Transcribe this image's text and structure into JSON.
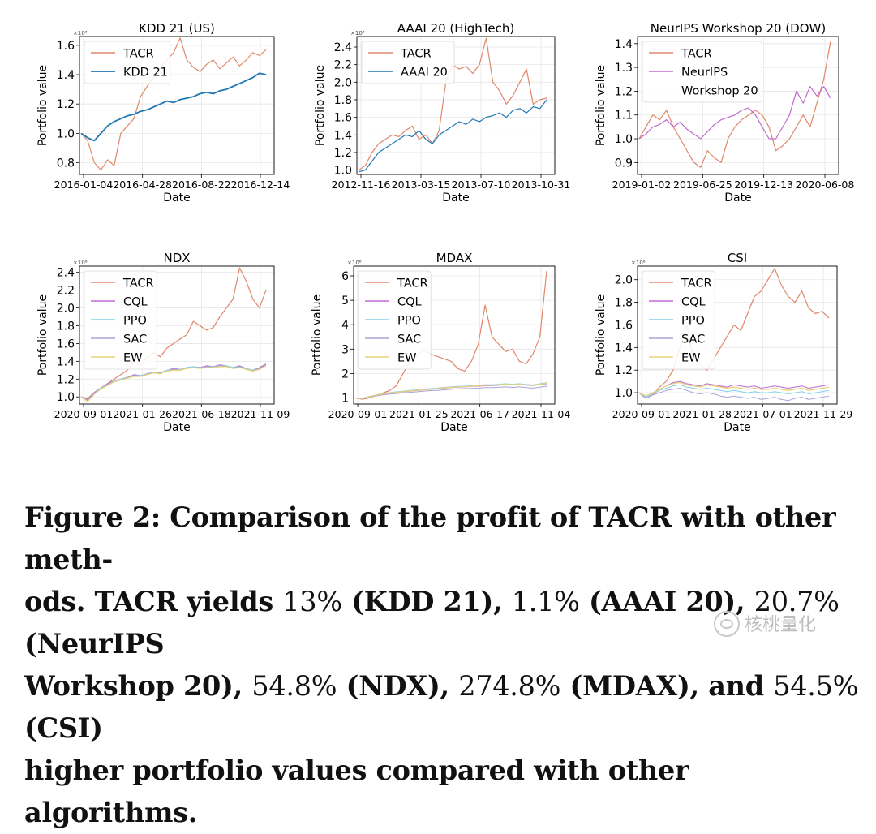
{
  "chart_data": [
    {
      "type": "line",
      "title": "KDD 21 (US)",
      "xlabel": "Date",
      "ylabel": "Portfolio value",
      "scale_label": "×10⁶",
      "x_ticks": [
        "2016-01-04",
        "2016-04-28",
        "2016-08-22",
        "2016-12-14"
      ],
      "ylim": [
        0.72,
        1.66
      ],
      "y_ticks": [
        0.8,
        1.0,
        1.2,
        1.4,
        1.6
      ],
      "y_tick_labels": [
        "0.8",
        "1.0",
        "1.2",
        "1.4",
        "1.6"
      ],
      "legend": "top-left",
      "series": [
        {
          "name": "TACR",
          "color": "#e0876a",
          "width": 1.2,
          "values": [
            1.0,
            0.95,
            0.8,
            0.75,
            0.82,
            0.78,
            1.0,
            1.05,
            1.1,
            1.25,
            1.32,
            1.38,
            1.45,
            1.5,
            1.55,
            1.65,
            1.5,
            1.45,
            1.42,
            1.47,
            1.5,
            1.44,
            1.48,
            1.52,
            1.46,
            1.5,
            1.55,
            1.53,
            1.57
          ]
        },
        {
          "name": "KDD 21",
          "color": "#1f77b4",
          "width": 1.8,
          "values": [
            1.0,
            0.97,
            0.95,
            1.0,
            1.05,
            1.08,
            1.1,
            1.12,
            1.13,
            1.15,
            1.16,
            1.18,
            1.2,
            1.22,
            1.21,
            1.23,
            1.24,
            1.25,
            1.27,
            1.28,
            1.27,
            1.29,
            1.3,
            1.32,
            1.34,
            1.36,
            1.38,
            1.41,
            1.4
          ]
        }
      ]
    },
    {
      "type": "line",
      "title": "AAAI 20 (HighTech)",
      "xlabel": "Date",
      "ylabel": "Portfolio value",
      "scale_label": "×10⁶",
      "x_ticks": [
        "2012-11-16",
        "2013-03-15",
        "2013-07-10",
        "2013-10-31"
      ],
      "ylim": [
        0.95,
        2.52
      ],
      "y_ticks": [
        1.0,
        1.2,
        1.4,
        1.6,
        1.8,
        2.0,
        2.2,
        2.4
      ],
      "y_tick_labels": [
        "1.0",
        "1.2",
        "1.4",
        "1.6",
        "1.8",
        "2.0",
        "2.2",
        "2.4"
      ],
      "legend": "top-left",
      "series": [
        {
          "name": "TACR",
          "color": "#e0876a",
          "width": 1.2,
          "values": [
            1.0,
            1.05,
            1.2,
            1.3,
            1.35,
            1.4,
            1.38,
            1.45,
            1.5,
            1.35,
            1.4,
            1.3,
            1.45,
            2.0,
            2.2,
            2.15,
            2.18,
            2.1,
            2.2,
            2.5,
            2.0,
            1.9,
            1.75,
            1.85,
            2.0,
            2.15,
            1.75,
            1.8,
            1.82
          ]
        },
        {
          "name": "AAAI 20",
          "color": "#1f77b4",
          "width": 1.2,
          "values": [
            0.98,
            1.0,
            1.1,
            1.2,
            1.25,
            1.3,
            1.35,
            1.4,
            1.38,
            1.45,
            1.35,
            1.3,
            1.4,
            1.45,
            1.5,
            1.55,
            1.52,
            1.58,
            1.55,
            1.6,
            1.62,
            1.65,
            1.6,
            1.68,
            1.7,
            1.65,
            1.72,
            1.7,
            1.8
          ]
        }
      ]
    },
    {
      "type": "line",
      "title": "NeurIPS Workshop 20 (DOW)",
      "xlabel": "Date",
      "ylabel": "Portfolio value",
      "scale_label": "",
      "x_ticks": [
        "2019-01-02",
        "2019-06-25",
        "2019-12-13",
        "2020-06-08"
      ],
      "ylim": [
        0.85,
        1.43
      ],
      "y_ticks": [
        0.9,
        1.0,
        1.1,
        1.2,
        1.3,
        1.4
      ],
      "y_tick_labels": [
        "0.9",
        "1.0",
        "1.1",
        "1.2",
        "1.3",
        "1.4"
      ],
      "legend": "top-left",
      "series": [
        {
          "name": "TACR",
          "color": "#e0876a",
          "width": 1.2,
          "values": [
            1.0,
            1.05,
            1.1,
            1.08,
            1.12,
            1.05,
            1.0,
            0.95,
            0.9,
            0.88,
            0.95,
            0.92,
            0.9,
            1.0,
            1.05,
            1.08,
            1.1,
            1.12,
            1.1,
            1.05,
            0.95,
            0.97,
            1.0,
            1.05,
            1.1,
            1.05,
            1.15,
            1.25,
            1.41
          ]
        },
        {
          "name": "NeurIPS\nWorkshop 20",
          "color": "#c06bd0",
          "width": 1.2,
          "values": [
            1.0,
            1.02,
            1.05,
            1.06,
            1.08,
            1.05,
            1.07,
            1.04,
            1.02,
            1.0,
            1.03,
            1.06,
            1.08,
            1.09,
            1.1,
            1.12,
            1.13,
            1.1,
            1.05,
            1.0,
            1.0,
            1.05,
            1.1,
            1.2,
            1.15,
            1.22,
            1.18,
            1.22,
            1.17
          ]
        }
      ]
    },
    {
      "type": "line",
      "title": "NDX",
      "xlabel": "Date",
      "ylabel": "Portfolio value",
      "scale_label": "×10⁶",
      "x_ticks": [
        "2020-09-01",
        "2021-01-26",
        "2021-06-18",
        "2021-11-09"
      ],
      "ylim": [
        0.92,
        2.47
      ],
      "y_ticks": [
        1.0,
        1.2,
        1.4,
        1.6,
        1.8,
        2.0,
        2.2,
        2.4
      ],
      "y_tick_labels": [
        "1.0",
        "1.2",
        "1.4",
        "1.6",
        "1.8",
        "2.0",
        "2.2",
        "2.4"
      ],
      "legend": "top-left",
      "series": [
        {
          "name": "TACR",
          "color": "#e0876a",
          "width": 1.2,
          "values": [
            1.0,
            0.98,
            1.05,
            1.1,
            1.15,
            1.2,
            1.25,
            1.3,
            1.4,
            1.35,
            1.45,
            1.5,
            1.45,
            1.55,
            1.6,
            1.65,
            1.7,
            1.85,
            1.8,
            1.75,
            1.78,
            1.9,
            2.0,
            2.1,
            2.45,
            2.3,
            2.1,
            2.0,
            2.2
          ]
        },
        {
          "name": "CQL",
          "color": "#c06bd0",
          "width": 1.0,
          "values": [
            1.0,
            0.97,
            1.05,
            1.1,
            1.15,
            1.18,
            1.2,
            1.22,
            1.25,
            1.24,
            1.26,
            1.28,
            1.27,
            1.3,
            1.32,
            1.31,
            1.33,
            1.34,
            1.33,
            1.35,
            1.34,
            1.36,
            1.35,
            1.33,
            1.35,
            1.32,
            1.3,
            1.33,
            1.37
          ]
        },
        {
          "name": "PPO",
          "color": "#7fd3e8",
          "width": 1.0,
          "values": [
            1.0,
            0.96,
            1.04,
            1.1,
            1.14,
            1.18,
            1.2,
            1.22,
            1.24,
            1.24,
            1.26,
            1.28,
            1.27,
            1.3,
            1.31,
            1.31,
            1.33,
            1.34,
            1.33,
            1.34,
            1.34,
            1.35,
            1.35,
            1.33,
            1.34,
            1.32,
            1.3,
            1.32,
            1.36
          ]
        },
        {
          "name": "SAC",
          "color": "#a9a3d8",
          "width": 1.0,
          "values": [
            1.0,
            0.96,
            1.04,
            1.09,
            1.14,
            1.17,
            1.19,
            1.22,
            1.24,
            1.23,
            1.26,
            1.27,
            1.27,
            1.29,
            1.31,
            1.3,
            1.32,
            1.33,
            1.33,
            1.34,
            1.33,
            1.35,
            1.34,
            1.32,
            1.34,
            1.31,
            1.29,
            1.32,
            1.36
          ]
        },
        {
          "name": "EW",
          "color": "#e8d27a",
          "width": 1.3,
          "values": [
            1.0,
            0.95,
            1.03,
            1.09,
            1.13,
            1.17,
            1.19,
            1.21,
            1.23,
            1.23,
            1.25,
            1.27,
            1.26,
            1.29,
            1.3,
            1.3,
            1.32,
            1.33,
            1.32,
            1.33,
            1.33,
            1.34,
            1.34,
            1.32,
            1.33,
            1.31,
            1.29,
            1.31,
            1.35
          ]
        }
      ]
    },
    {
      "type": "line",
      "title": "MDAX",
      "xlabel": "Date",
      "ylabel": "Portfolio value",
      "scale_label": "×10⁶",
      "x_ticks": [
        "2020-09-01",
        "2021-01-25",
        "2021-06-17",
        "2021-11-04"
      ],
      "ylim": [
        0.75,
        6.4
      ],
      "y_ticks": [
        1,
        2,
        3,
        4,
        5,
        6
      ],
      "y_tick_labels": [
        "1",
        "2",
        "3",
        "4",
        "5",
        "6"
      ],
      "legend": "top-left",
      "series": [
        {
          "name": "TACR",
          "color": "#e0876a",
          "width": 1.2,
          "values": [
            1.0,
            0.95,
            1.0,
            1.1,
            1.2,
            1.3,
            1.5,
            2.0,
            2.5,
            2.7,
            3.0,
            2.8,
            2.7,
            2.6,
            2.5,
            2.2,
            2.1,
            2.5,
            3.2,
            4.8,
            3.5,
            3.2,
            2.9,
            3.0,
            2.5,
            2.4,
            2.8,
            3.5,
            6.2
          ]
        },
        {
          "name": "CQL",
          "color": "#c06bd0",
          "width": 1.0,
          "values": [
            1.0,
            0.98,
            1.05,
            1.1,
            1.15,
            1.2,
            1.22,
            1.25,
            1.28,
            1.3,
            1.33,
            1.35,
            1.37,
            1.4,
            1.42,
            1.44,
            1.45,
            1.47,
            1.48,
            1.5,
            1.5,
            1.52,
            1.55,
            1.53,
            1.55,
            1.52,
            1.5,
            1.55,
            1.58
          ]
        },
        {
          "name": "PPO",
          "color": "#7fd3e8",
          "width": 1.0,
          "values": [
            1.0,
            0.98,
            1.06,
            1.12,
            1.17,
            1.22,
            1.25,
            1.28,
            1.31,
            1.33,
            1.36,
            1.38,
            1.4,
            1.43,
            1.45,
            1.47,
            1.48,
            1.5,
            1.52,
            1.54,
            1.54,
            1.56,
            1.58,
            1.56,
            1.58,
            1.55,
            1.53,
            1.58,
            1.62
          ]
        },
        {
          "name": "SAC",
          "color": "#a9a3d8",
          "width": 1.0,
          "values": [
            1.0,
            0.97,
            1.03,
            1.08,
            1.12,
            1.16,
            1.18,
            1.21,
            1.23,
            1.25,
            1.28,
            1.3,
            1.31,
            1.33,
            1.35,
            1.37,
            1.38,
            1.39,
            1.4,
            1.42,
            1.42,
            1.43,
            1.45,
            1.43,
            1.45,
            1.42,
            1.4,
            1.44,
            1.48
          ]
        },
        {
          "name": "EW",
          "color": "#e8d27a",
          "width": 1.3,
          "values": [
            1.0,
            0.98,
            1.05,
            1.11,
            1.16,
            1.21,
            1.23,
            1.26,
            1.29,
            1.31,
            1.34,
            1.36,
            1.38,
            1.41,
            1.43,
            1.45,
            1.46,
            1.48,
            1.5,
            1.52,
            1.52,
            1.54,
            1.56,
            1.54,
            1.56,
            1.53,
            1.51,
            1.56,
            1.6
          ]
        }
      ]
    },
    {
      "type": "line",
      "title": "CSI",
      "xlabel": "Date",
      "ylabel": "Portfolio value",
      "scale_label": "×10⁶",
      "x_ticks": [
        "2020-09-01",
        "2021-01-28",
        "2021-07-01",
        "2021-11-29"
      ],
      "ylim": [
        0.9,
        2.12
      ],
      "y_ticks": [
        1.0,
        1.2,
        1.4,
        1.6,
        1.8,
        2.0
      ],
      "y_tick_labels": [
        "1.0",
        "1.2",
        "1.4",
        "1.6",
        "1.8",
        "2.0"
      ],
      "legend": "top-left",
      "series": [
        {
          "name": "TACR",
          "color": "#e0876a",
          "width": 1.2,
          "values": [
            1.0,
            0.95,
            0.98,
            1.05,
            1.1,
            1.2,
            1.4,
            1.6,
            1.3,
            1.25,
            1.2,
            1.3,
            1.4,
            1.5,
            1.6,
            1.55,
            1.7,
            1.85,
            1.9,
            2.0,
            2.1,
            1.95,
            1.85,
            1.8,
            1.9,
            1.75,
            1.7,
            1.72,
            1.66
          ]
        },
        {
          "name": "CQL",
          "color": "#c06bd0",
          "width": 1.0,
          "values": [
            1.0,
            0.97,
            1.0,
            1.03,
            1.06,
            1.09,
            1.1,
            1.08,
            1.07,
            1.06,
            1.08,
            1.07,
            1.06,
            1.05,
            1.07,
            1.06,
            1.05,
            1.06,
            1.04,
            1.05,
            1.06,
            1.05,
            1.04,
            1.05,
            1.06,
            1.04,
            1.05,
            1.06,
            1.07
          ]
        },
        {
          "name": "PPO",
          "color": "#7fd3e8",
          "width": 1.0,
          "values": [
            1.0,
            0.96,
            0.99,
            1.02,
            1.04,
            1.06,
            1.07,
            1.05,
            1.04,
            1.03,
            1.04,
            1.03,
            1.02,
            1.01,
            1.02,
            1.01,
            1.0,
            1.01,
            1.0,
            1.0,
            1.01,
            1.0,
            0.99,
            1.0,
            1.01,
            0.99,
            1.0,
            1.01,
            1.02
          ]
        },
        {
          "name": "SAC",
          "color": "#a9a3d8",
          "width": 1.0,
          "values": [
            1.0,
            0.95,
            0.98,
            1.0,
            1.02,
            1.03,
            1.04,
            1.02,
            1.0,
            0.99,
            1.0,
            0.99,
            0.97,
            0.96,
            0.97,
            0.96,
            0.95,
            0.96,
            0.94,
            0.95,
            0.96,
            0.94,
            0.93,
            0.95,
            0.96,
            0.94,
            0.95,
            0.96,
            0.97
          ]
        },
        {
          "name": "EW",
          "color": "#e8d27a",
          "width": 1.3,
          "values": [
            1.0,
            0.97,
            1.0,
            1.03,
            1.06,
            1.08,
            1.09,
            1.07,
            1.06,
            1.05,
            1.07,
            1.06,
            1.05,
            1.04,
            1.05,
            1.04,
            1.03,
            1.04,
            1.03,
            1.03,
            1.04,
            1.03,
            1.02,
            1.03,
            1.04,
            1.02,
            1.03,
            1.04,
            1.05
          ]
        }
      ]
    }
  ],
  "caption": {
    "p1": "Figure 2: Comparison of the profit of TACR with other meth-",
    "p2": "ods. TACR yields ",
    "n1": "13%",
    "p3": " (KDD 21), ",
    "n2": "1.1%",
    "p4": " (AAAI 20), ",
    "n3": "20.7%",
    "p5": " (NeurIPS",
    "p6": "Workshop 20), ",
    "n4": "54.8%",
    "p7": " (NDX), ",
    "n5": "274.8%",
    "p8": " (MDAX), and ",
    "n6": "54.5%",
    "p9": " (CSI)",
    "p10": "higher portfolio values compared with other algorithms."
  },
  "watermark": {
    "text": "核桃量化"
  }
}
